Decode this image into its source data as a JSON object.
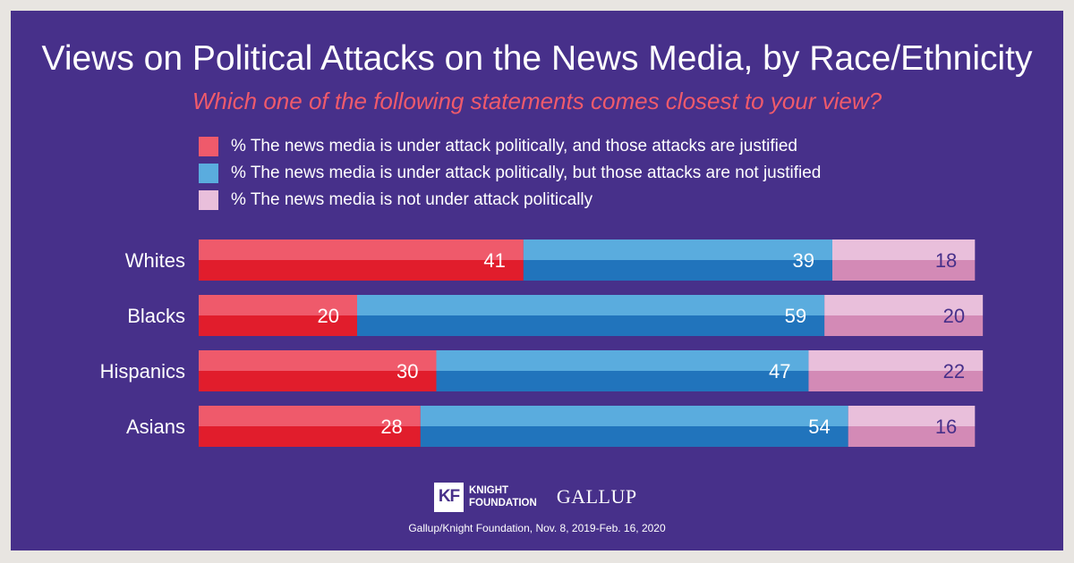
{
  "colors": {
    "background": "#47308a",
    "frame": "#e8e5e1",
    "justified_light": "#ef5a6b",
    "justified_dark": "#e11d2c",
    "not_justified_light": "#5aacde",
    "not_justified_dark": "#2174bc",
    "not_under_attack_light": "#e9bfdb",
    "not_under_attack_dark": "#d38ab6"
  },
  "chart_data": {
    "type": "bar",
    "orientation": "horizontal",
    "stacked": true,
    "title": "Views on Political Attacks on the News Media, by Race/Ethnicity",
    "subtitle": "Which one of the following statements comes closest to your view?",
    "categories": [
      "Whites",
      "Blacks",
      "Hispanics",
      "Asians"
    ],
    "series": [
      {
        "name": "% The news media is under attack politically, and those attacks are justified",
        "values": [
          41,
          20,
          30,
          28
        ]
      },
      {
        "name": "% The news media is under attack politically, but those attacks are not justified",
        "values": [
          39,
          59,
          47,
          54
        ]
      },
      {
        "name": "% The news media is not under attack politically",
        "values": [
          18,
          20,
          22,
          16
        ]
      }
    ],
    "legend_position": "top",
    "xlim": [
      0,
      100
    ],
    "grid": false
  },
  "logos": {
    "kf_mark": "KF",
    "knight_text": "KNIGHT\nFOUNDATION",
    "gallup_text": "GALLUP"
  },
  "source": "Gallup/Knight Foundation, Nov. 8, 2019-Feb. 16, 2020"
}
